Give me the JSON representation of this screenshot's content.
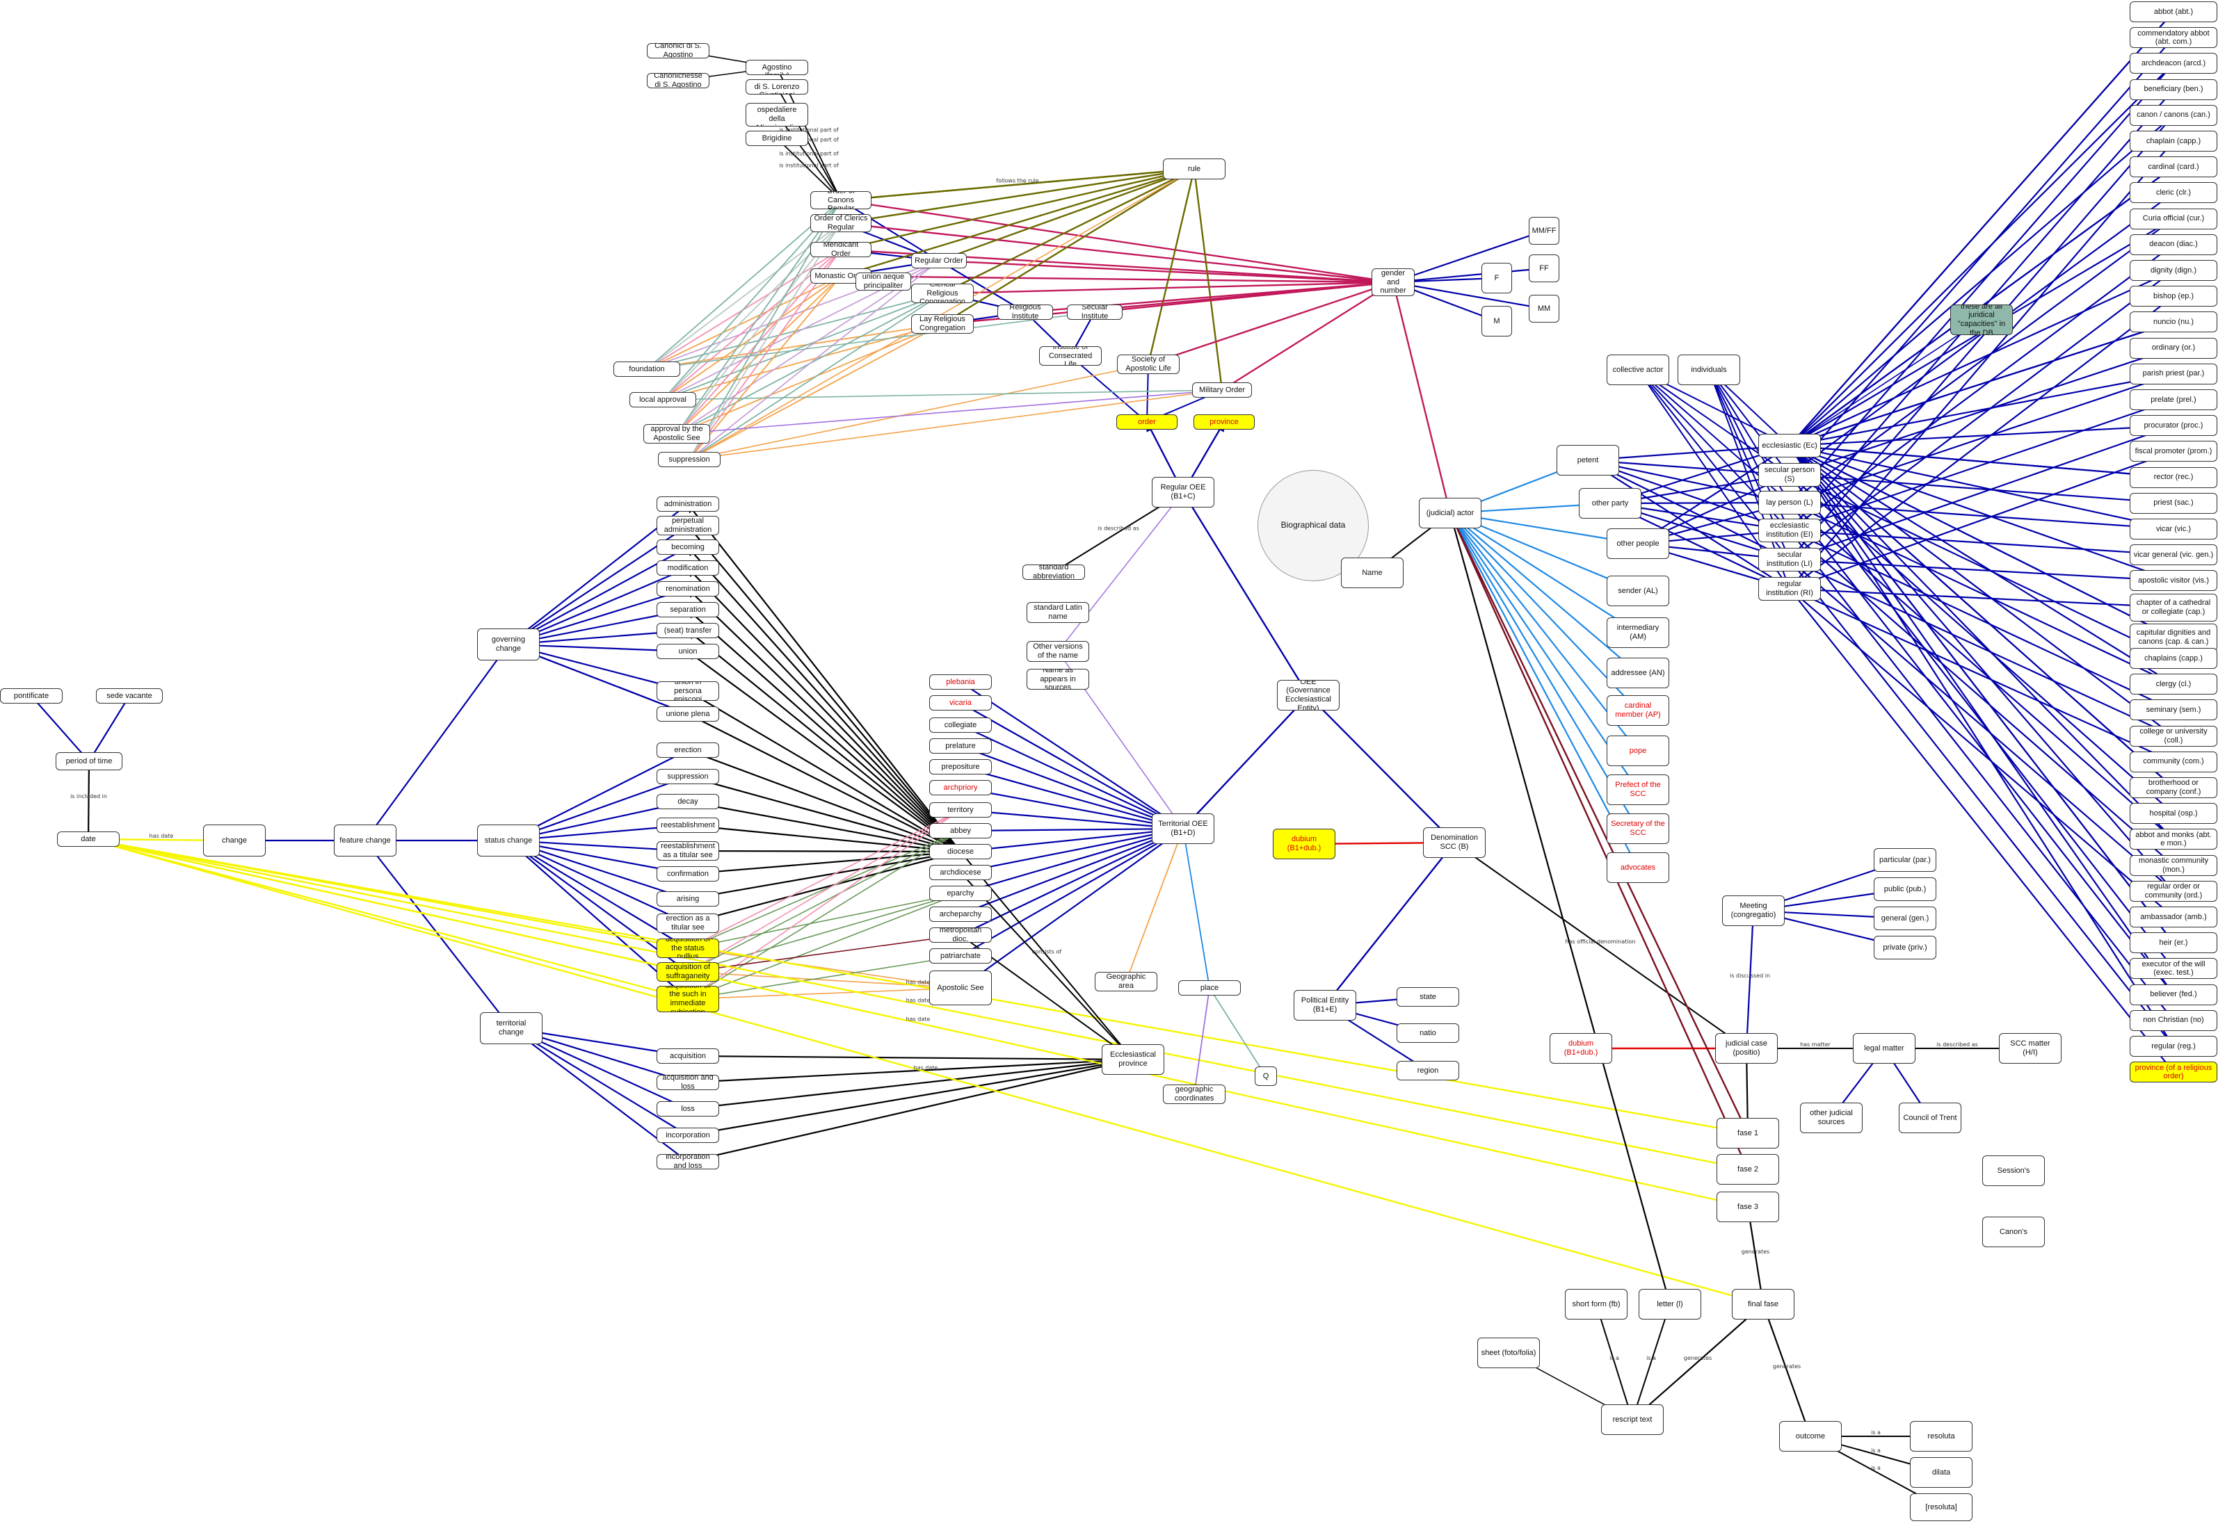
{
  "colors": {
    "blue": "#0000aa",
    "lightblue": "#1e88e5",
    "black": "#000000",
    "magenta": "#c2185b",
    "olive": "#6b6b00",
    "orange": "#f4a24a",
    "teal": "#7fb3a6",
    "pink": "#f48fb1",
    "yellow": "#f5f500",
    "purple": "#a070e0",
    "red": "#e00000",
    "green": "#6a9a5a",
    "darkred": "#7a1020"
  },
  "nodes": [
    {
      "id": "canonici1",
      "label": "Canonici di S. Agostino"
    },
    {
      "id": "canonichesse1",
      "label": "Canonichesse di S. Agostino"
    },
    {
      "id": "canonici_fam",
      "label": "Canonici di S. Agostino (family)"
    },
    {
      "id": "canonichesse_lg",
      "label": "Canonichesse di S. Lorenzo Giustiniani"
    },
    {
      "id": "canonichesse_osp",
      "label": "Canonichesse ospedaliere della Misericordia"
    },
    {
      "id": "brigidine",
      "label": "Brigidine"
    },
    {
      "id": "order_canons",
      "label": "Order of Canons Regular"
    },
    {
      "id": "order_clerics",
      "label": "Order of Clerics Regular"
    },
    {
      "id": "mendicant",
      "label": "Mendicant Order"
    },
    {
      "id": "monastic",
      "label": "Monastic Order"
    },
    {
      "id": "union_aeque",
      "label": "union aeque principaliter"
    },
    {
      "id": "regular_order",
      "label": "Regular Order"
    },
    {
      "id": "clerical_rel",
      "label": "Clerical Religious Congregation"
    },
    {
      "id": "lay_rel",
      "label": "Lay Religious Congregation"
    },
    {
      "id": "religious_inst",
      "label": "Religious Institute"
    },
    {
      "id": "secular_inst",
      "label": "Secular Institute"
    },
    {
      "id": "inst_consecrated",
      "label": "Institute of Consecrated Life"
    },
    {
      "id": "society_apostolic",
      "label": "Society of Apostolic Life"
    },
    {
      "id": "military_order",
      "label": "Military Order"
    },
    {
      "id": "rule",
      "label": "rule"
    },
    {
      "id": "order_y",
      "label": "order"
    },
    {
      "id": "province_y",
      "label": "province"
    },
    {
      "id": "foundation",
      "label": "foundation"
    },
    {
      "id": "local_approval",
      "label": "local approval"
    },
    {
      "id": "approval_apostolic",
      "label": "approval by the Apostolic See"
    },
    {
      "id": "suppression_top",
      "label": "suppression"
    },
    {
      "id": "gender",
      "label": "gender and number"
    },
    {
      "id": "mmff",
      "label": "MM/FF"
    },
    {
      "id": "ff",
      "label": "FF"
    },
    {
      "id": "mm",
      "label": "MM"
    },
    {
      "id": "f",
      "label": "F"
    },
    {
      "id": "m",
      "label": "M"
    },
    {
      "id": "regular_oee",
      "label": "Regular OEE (B1+C)"
    },
    {
      "id": "biographical",
      "label": "Biographical data"
    },
    {
      "id": "name",
      "label": "Name"
    },
    {
      "id": "judicial_actor",
      "label": "(judicial) actor"
    },
    {
      "id": "collective_actor",
      "label": "collective actor"
    },
    {
      "id": "individuals",
      "label": "individuals"
    },
    {
      "id": "petent",
      "label": "petent"
    },
    {
      "id": "other_party",
      "label": "other party"
    },
    {
      "id": "other_people",
      "label": "other people"
    },
    {
      "id": "sender",
      "label": "sender (AL)"
    },
    {
      "id": "intermediary",
      "label": "intermediary (AM)"
    },
    {
      "id": "addressee",
      "label": "addressee (AN)"
    },
    {
      "id": "cardinal_member",
      "label": "cardinal member (AP)"
    },
    {
      "id": "pope",
      "label": "pope"
    },
    {
      "id": "prefect_scc",
      "label": "Prefect of the SCC"
    },
    {
      "id": "secretary_scc",
      "label": "Secretary of the SCC"
    },
    {
      "id": "advocates",
      "label": "advocates"
    },
    {
      "id": "ecclesiastic",
      "label": "ecclesiastic (Ec)"
    },
    {
      "id": "secular_person",
      "label": "secular person (S)"
    },
    {
      "id": "lay_person",
      "label": "lay person (L)"
    },
    {
      "id": "eccl_institution",
      "label": "ecclesiastic institution (EI)"
    },
    {
      "id": "secular_institution",
      "label": "secular institution (LI)"
    },
    {
      "id": "regular_institution",
      "label": "regular institution (RI)"
    },
    {
      "id": "teal_note",
      "label": "these are all juridical \"capacities\" in the DB"
    },
    {
      "id": "administration",
      "label": "administration"
    },
    {
      "id": "perpetual_admin",
      "label": "perpetual administration"
    },
    {
      "id": "becoming",
      "label": "becoming"
    },
    {
      "id": "modification",
      "label": "modification"
    },
    {
      "id": "renomination",
      "label": "renomination"
    },
    {
      "id": "separation",
      "label": "separation"
    },
    {
      "id": "seat_transfer",
      "label": "(seat) transfer"
    },
    {
      "id": "union",
      "label": "union"
    },
    {
      "id": "union_persona",
      "label": "union in persona episcopi"
    },
    {
      "id": "unione_plena",
      "label": "unione plena"
    },
    {
      "id": "governing_change",
      "label": "governing change"
    },
    {
      "id": "erection",
      "label": "erection"
    },
    {
      "id": "suppression_mid",
      "label": "suppression"
    },
    {
      "id": "decay",
      "label": "decay"
    },
    {
      "id": "reestablishment",
      "label": "reestablishment"
    },
    {
      "id": "reestablishment_titular",
      "label": "reestablishment as a titular see"
    },
    {
      "id": "confirmation",
      "label": "confirmation"
    },
    {
      "id": "arising",
      "label": "arising"
    },
    {
      "id": "erection_titular",
      "label": "erection as a titular see"
    },
    {
      "id": "acq_nullius",
      "label": "acquisition of the status nullius"
    },
    {
      "id": "acq_suffraganeity",
      "label": "acquisition of suffraganeity"
    },
    {
      "id": "acq_immediate",
      "label": "acquisition of the such in immediate subjection"
    },
    {
      "id": "status_change",
      "label": "status change"
    },
    {
      "id": "acquisition",
      "label": "acquisition"
    },
    {
      "id": "acq_loss",
      "label": "acquisition and loss"
    },
    {
      "id": "loss",
      "label": "loss"
    },
    {
      "id": "incorporation",
      "label": "incorporation"
    },
    {
      "id": "incorp_loss",
      "label": "incorporation and loss"
    },
    {
      "id": "territorial_change",
      "label": "territorial change"
    },
    {
      "id": "feature_change",
      "label": "feature change"
    },
    {
      "id": "change",
      "label": "change"
    },
    {
      "id": "date",
      "label": "date"
    },
    {
      "id": "period",
      "label": "period of time"
    },
    {
      "id": "pontificate",
      "label": "pontificate"
    },
    {
      "id": "sede_vacante",
      "label": "sede vacante"
    },
    {
      "id": "plebania",
      "label": "plebania"
    },
    {
      "id": "vicaria",
      "label": "vicaria"
    },
    {
      "id": "collegiate",
      "label": "collegiate"
    },
    {
      "id": "prelature",
      "label": "prelature"
    },
    {
      "id": "prepositure",
      "label": "prepositure"
    },
    {
      "id": "archpriory",
      "label": "archpriory"
    },
    {
      "id": "territory",
      "label": "territory"
    },
    {
      "id": "abbey",
      "label": "abbey"
    },
    {
      "id": "diocese",
      "label": "diocese"
    },
    {
      "id": "archdiocese",
      "label": "archdiocese"
    },
    {
      "id": "eparchy",
      "label": "eparchy"
    },
    {
      "id": "archeparchy",
      "label": "archeparchy"
    },
    {
      "id": "metropolitan",
      "label": "metropolitan dioc."
    },
    {
      "id": "patriarchate",
      "label": "patriarchate"
    },
    {
      "id": "apostolic_see",
      "label": "Apostolic See"
    },
    {
      "id": "standard_abbr",
      "label": "standard abbreviation"
    },
    {
      "id": "standard_latin",
      "label": "standard Latin name"
    },
    {
      "id": "other_versions",
      "label": "Other versions of the name"
    },
    {
      "id": "name_sources",
      "label": "Name as appears in sources"
    },
    {
      "id": "oee",
      "label": "OEE (Governance Ecclesiastical Entity)"
    },
    {
      "id": "territorial_oee",
      "label": "Territorial OEE (B1+D)"
    },
    {
      "id": "dubium_top",
      "label": "dubium (B1+dub.)"
    },
    {
      "id": "denomination_scc",
      "label": "Denomination SCC (B)"
    },
    {
      "id": "geographic_area",
      "label": "Geographic area"
    },
    {
      "id": "place",
      "label": "place"
    },
    {
      "id": "q",
      "label": "Q"
    },
    {
      "id": "geo_coords",
      "label": "geographic coordinates"
    },
    {
      "id": "eccl_province",
      "label": "Ecclesiastical province"
    },
    {
      "id": "political_entity",
      "label": "Political Entity (B1+E)"
    },
    {
      "id": "state",
      "label": "state"
    },
    {
      "id": "natio",
      "label": "natio"
    },
    {
      "id": "region",
      "label": "region"
    },
    {
      "id": "meeting",
      "label": "Meeting (congregatio)"
    },
    {
      "id": "particular",
      "label": "particular (par.)"
    },
    {
      "id": "public",
      "label": "public (pub.)"
    },
    {
      "id": "general",
      "label": "general (gen.)"
    },
    {
      "id": "private",
      "label": "private (priv.)"
    },
    {
      "id": "judicial_case",
      "label": "judicial case (positio)"
    },
    {
      "id": "dubium_bottom",
      "label": "dubium (B1+dub.)"
    },
    {
      "id": "legal_matter",
      "label": "legal matter"
    },
    {
      "id": "scc_matter",
      "label": "SCC matter (H/I)"
    },
    {
      "id": "other_judicial",
      "label": "other judicial sources"
    },
    {
      "id": "council_trent",
      "label": "Council of Trent"
    },
    {
      "id": "fase1",
      "label": "fase 1"
    },
    {
      "id": "fase2",
      "label": "fase 2"
    },
    {
      "id": "fase3",
      "label": "fase 3"
    },
    {
      "id": "sessions",
      "label": "Session's"
    },
    {
      "id": "canons",
      "label": "Canon's"
    },
    {
      "id": "final_fase",
      "label": "final fase"
    },
    {
      "id": "short_form",
      "label": "short form (fb)"
    },
    {
      "id": "letter",
      "label": "letter (l)"
    },
    {
      "id": "sheet",
      "label": "sheet (foto/folia)"
    },
    {
      "id": "rescript",
      "label": "rescript text"
    },
    {
      "id": "outcome",
      "label": "outcome"
    },
    {
      "id": "resoluta",
      "label": "resoluta"
    },
    {
      "id": "dilata",
      "label": "dilata"
    },
    {
      "id": "non_resoluta",
      "label": "[resoluta]"
    },
    {
      "id": "abbot",
      "label": "abbot (abt.)"
    },
    {
      "id": "commendatory",
      "label": "commendatory abbot (abt. com.)"
    },
    {
      "id": "archdeacon",
      "label": "archdeacon (arcd.)"
    },
    {
      "id": "beneficiary",
      "label": "beneficiary (ben.)"
    },
    {
      "id": "canon",
      "label": "canon / canons (can.)"
    },
    {
      "id": "chaplain",
      "label": "chaplain (capp.)"
    },
    {
      "id": "cardinal",
      "label": "cardinal (card.)"
    },
    {
      "id": "cleric",
      "label": "cleric (clr.)"
    },
    {
      "id": "curia_official",
      "label": "Curia official (cur.)"
    },
    {
      "id": "deacon",
      "label": "deacon (diac.)"
    },
    {
      "id": "dignity",
      "label": "dignity (dign.)"
    },
    {
      "id": "bishop",
      "label": "bishop (ep.)"
    },
    {
      "id": "nuncio",
      "label": "nuncio (nu.)"
    },
    {
      "id": "ordinary",
      "label": "ordinary (or.)"
    },
    {
      "id": "parish_priest",
      "label": "parish priest (par.)"
    },
    {
      "id": "prelate",
      "label": "prelate (prel.)"
    },
    {
      "id": "procurator",
      "label": "procurator (proc.)"
    },
    {
      "id": "fiscal_promoter",
      "label": "fiscal promoter (prom.)"
    },
    {
      "id": "rector",
      "label": "rector (rec.)"
    },
    {
      "id": "priest",
      "label": "priest (sac.)"
    },
    {
      "id": "vicar",
      "label": "vicar (vic.)"
    },
    {
      "id": "vicar_general",
      "label": "vicar general (vic. gen.)"
    },
    {
      "id": "apostolic_visitor",
      "label": "apostolic visitor (vis.)"
    },
    {
      "id": "chapter",
      "label": "chapter of a cathedral or collegiate (cap.)"
    },
    {
      "id": "capitular",
      "label": "capitular dignities and canons (cap. & can.)"
    },
    {
      "id": "chaplains",
      "label": "chaplains (capp.)"
    },
    {
      "id": "clergy",
      "label": "clergy (cl.)"
    },
    {
      "id": "seminary",
      "label": "seminary (sem.)"
    },
    {
      "id": "college",
      "label": "college or university (coll.)"
    },
    {
      "id": "community",
      "label": "community (com.)"
    },
    {
      "id": "brotherhood",
      "label": "brotherhood or company (conf.)"
    },
    {
      "id": "hospital",
      "label": "hospital (osp.)"
    },
    {
      "id": "abbot_monks",
      "label": "abbot and monks (abt. e mon.)"
    },
    {
      "id": "monastic_comm",
      "label": "monastic community (mon.)"
    },
    {
      "id": "regular_order_comm",
      "label": "regular order or community (ord.)"
    },
    {
      "id": "ambassador",
      "label": "ambassador (amb.)"
    },
    {
      "id": "heir",
      "label": "heir (er.)"
    },
    {
      "id": "executor",
      "label": "executor of the will (exec. test.)"
    },
    {
      "id": "believer",
      "label": "believer (fed.)"
    },
    {
      "id": "non_christian",
      "label": "non Christian (no)"
    },
    {
      "id": "regular",
      "label": "regular (reg.)"
    },
    {
      "id": "province_religious",
      "label": "province (of a religious order)"
    }
  ],
  "edge_labels": {
    "follows_rule": "follows the rule",
    "is_inst_part_of": "is institutional part of",
    "has_date": "has date",
    "is_included_in": "is included in",
    "is_discussed_in": "is discussed in",
    "has_matter": "has matter",
    "is_described_as": "is described as",
    "consists_of": "consists of",
    "generates": "generates",
    "is_a": "is a",
    "has_official_denomination": "has official denomination"
  }
}
